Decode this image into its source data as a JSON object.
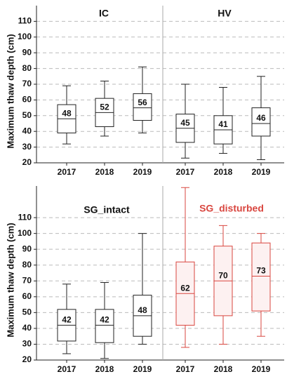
{
  "chart_data": [
    {
      "type": "box",
      "title": "IC",
      "ylabel": "Maximum thaw depth (cm)",
      "categories": [
        "2017",
        "2018",
        "2019"
      ],
      "min": [
        32,
        37,
        39
      ],
      "q1": [
        39,
        43,
        47
      ],
      "median": [
        48,
        52,
        55
      ],
      "q3": [
        57,
        61,
        64
      ],
      "max": [
        69,
        72,
        81
      ],
      "mean_labels": [
        48,
        52,
        56
      ],
      "color": "#222222",
      "fill": "#ffffff",
      "ylim": [
        20,
        120
      ],
      "yticks": [
        20,
        30,
        40,
        50,
        60,
        70,
        80,
        90,
        100,
        110
      ],
      "show_tick_labels": true,
      "grid": true
    },
    {
      "type": "box",
      "title": "HV",
      "categories": [
        "2017",
        "2018",
        "2019"
      ],
      "min": [
        23,
        26,
        22
      ],
      "q1": [
        33,
        32,
        37
      ],
      "median": [
        42,
        41,
        45
      ],
      "q3": [
        51,
        50,
        55
      ],
      "max": [
        70,
        68,
        75
      ],
      "mean_labels": [
        45,
        41,
        46
      ],
      "color": "#222222",
      "fill": "#ffffff",
      "ylim": [
        20,
        120
      ],
      "yticks": [
        20,
        30,
        40,
        50,
        60,
        70,
        80,
        90,
        100,
        110
      ],
      "show_tick_labels": false,
      "grid": true
    },
    {
      "type": "box",
      "title": "SG_intact",
      "ylabel": "Maximum thaw depth (cm)",
      "categories": [
        "2017",
        "2018",
        "2019"
      ],
      "min": [
        24,
        21,
        30
      ],
      "q1": [
        32,
        31,
        35
      ],
      "median": [
        42,
        42,
        48
      ],
      "q3": [
        52,
        52,
        61
      ],
      "max": [
        68,
        69,
        100
      ],
      "mean_labels": [
        42,
        42,
        48
      ],
      "color": "#222222",
      "fill": "#ffffff",
      "ylim": [
        20,
        130
      ],
      "yticks": [
        20,
        30,
        40,
        50,
        60,
        70,
        80,
        90,
        100,
        110
      ],
      "show_tick_labels": true,
      "grid": true
    },
    {
      "type": "box",
      "title": "SG_disturbed",
      "categories": [
        "2017",
        "2018",
        "2019"
      ],
      "min": [
        28,
        30,
        35
      ],
      "q1": [
        42,
        48,
        51
      ],
      "median": [
        62,
        70,
        73
      ],
      "q3": [
        82,
        92,
        94
      ],
      "max": [
        129,
        105,
        100
      ],
      "mean_labels": [
        62,
        70,
        73
      ],
      "color": "#d9463f",
      "fill": "#fdf1f1",
      "title_color": "#d9463f",
      "ylim": [
        20,
        130
      ],
      "yticks": [
        20,
        30,
        40,
        50,
        60,
        70,
        80,
        90,
        100,
        110
      ],
      "show_tick_labels": false,
      "grid": true
    }
  ]
}
